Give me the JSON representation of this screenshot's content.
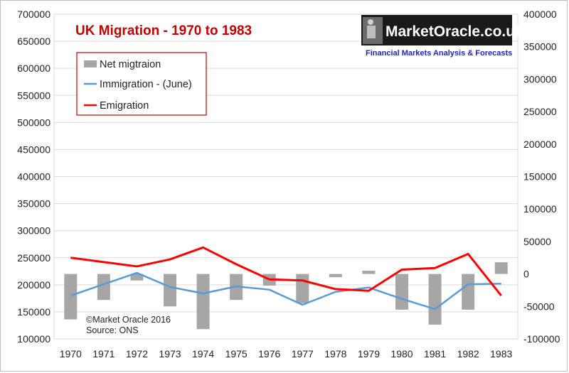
{
  "chart_data": {
    "type": "bar+line",
    "title": "UK Migration - 1970 to 1983",
    "categories": [
      "1970",
      "1971",
      "1972",
      "1973",
      "1974",
      "1975",
      "1976",
      "1977",
      "1978",
      "1979",
      "1980",
      "1981",
      "1982",
      "1983"
    ],
    "left_axis": {
      "ylim": [
        100000,
        700000
      ],
      "ticks": [
        "700000",
        "650000",
        "600000",
        "550000",
        "500000",
        "450000",
        "400000",
        "350000",
        "300000",
        "250000",
        "200000",
        "150000",
        "100000"
      ],
      "tick_values": [
        700000,
        650000,
        600000,
        550000,
        500000,
        450000,
        400000,
        350000,
        300000,
        250000,
        200000,
        150000,
        100000
      ]
    },
    "right_axis": {
      "ylim": [
        -100000,
        400000
      ],
      "ticks": [
        "400000",
        "350000",
        "300000",
        "250000",
        "200000",
        "150000",
        "100000",
        "50000",
        "0",
        "-50000",
        "-100000"
      ],
      "tick_values": [
        400000,
        350000,
        300000,
        250000,
        200000,
        150000,
        100000,
        50000,
        0,
        -50000,
        -100000
      ]
    },
    "series": [
      {
        "name": "Net migtraion",
        "type": "bar",
        "axis": "right",
        "color": "#a6a6a6",
        "values": [
          -70000,
          -40000,
          -10000,
          -50000,
          -85000,
          -40000,
          -18000,
          -45000,
          -5000,
          5000,
          -55000,
          -78000,
          -55000,
          18000
        ]
      },
      {
        "name": "Immigration - (June)",
        "type": "line",
        "axis": "left",
        "color": "#5b9bd5",
        "values": [
          180000,
          201000,
          222000,
          196000,
          184000,
          197000,
          191000,
          163000,
          187000,
          195000,
          174000,
          155000,
          201000,
          202000
        ]
      },
      {
        "name": "Emigration",
        "type": "line",
        "axis": "left",
        "color": "#ff0000",
        "values": [
          250000,
          242000,
          234000,
          247000,
          269000,
          238000,
          210000,
          208000,
          192000,
          189000,
          228000,
          231000,
          257000,
          180000
        ]
      }
    ],
    "legend": [
      "Net migtraion",
      "Immigration - (June)",
      "Emigration"
    ],
    "legend_position": "top-left",
    "grid": true,
    "annotations": [
      "©Market Oracle 2016",
      "Source: ONS"
    ]
  },
  "logo": {
    "name": "MarketOracle.co.uk",
    "tagline": "Financial Markets Analysis & Forecasts"
  }
}
